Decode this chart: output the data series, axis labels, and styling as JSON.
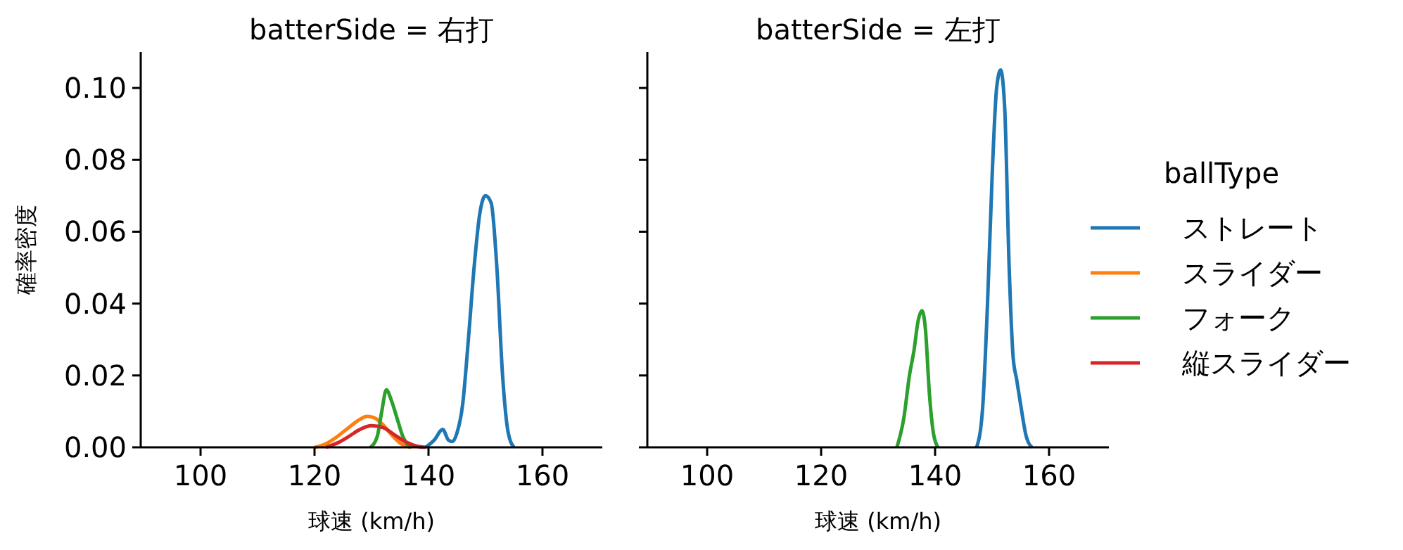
{
  "chart_data": [
    {
      "type": "line",
      "title": "batterSide = 右打",
      "xlabel": "球速 (km/h)",
      "ylabel": "確率密度",
      "xlim": [
        89.5,
        170.5
      ],
      "xticks": [
        100,
        120,
        140,
        160
      ],
      "ylim": [
        0,
        0.11
      ],
      "yticks": [
        {
          "value": 0,
          "label": "0.00"
        },
        {
          "value": 0.02,
          "label": "0.02"
        },
        {
          "value": 0.04,
          "label": "0.04"
        },
        {
          "value": 0.06,
          "label": "0.06"
        },
        {
          "value": 0.08,
          "label": "0.08"
        },
        {
          "value": 0.1,
          "label": "0.10"
        }
      ],
      "legend_title": "ballType",
      "legend": "right",
      "grid": false,
      "series": [
        {
          "name": "ストレート",
          "color": "#1f77b4",
          "x": [
            139.5,
            141,
            142.5,
            143.5,
            144.2,
            145,
            146,
            147,
            148,
            149,
            150,
            151,
            152,
            153,
            154,
            155
          ],
          "values": [
            0,
            0.002,
            0.005,
            0.002,
            0.0016,
            0.004,
            0.012,
            0.03,
            0.05,
            0.065,
            0.07,
            0.068,
            0.05,
            0.02,
            0.004,
            0
          ]
        },
        {
          "name": "スライダー",
          "color": "#ff7f0e",
          "x": [
            120,
            122,
            124,
            126,
            128,
            129.2,
            130.5,
            132,
            133.5,
            135,
            137
          ],
          "values": [
            0,
            0.001,
            0.003,
            0.0055,
            0.0078,
            0.0086,
            0.0082,
            0.0063,
            0.0035,
            0.0012,
            0
          ]
        },
        {
          "name": "フォーク",
          "color": "#2ca02c",
          "x": [
            129.8,
            131,
            131.8,
            132.6,
            133.5,
            134.5,
            135.5,
            136.7
          ],
          "values": [
            0,
            0.003,
            0.01,
            0.016,
            0.013,
            0.008,
            0.003,
            0
          ]
        },
        {
          "name": "縦スライダー",
          "color": "#d62728",
          "x": [
            122,
            124,
            126,
            128,
            130,
            132,
            134,
            136,
            138,
            139.5
          ],
          "values": [
            0,
            0.0012,
            0.003,
            0.005,
            0.006,
            0.0055,
            0.0035,
            0.0015,
            0.0003,
            0
          ]
        }
      ]
    },
    {
      "type": "line",
      "title": "batterSide = 左打",
      "xlabel": "球速 (km/h)",
      "xlim": [
        89.5,
        170.5
      ],
      "xticks": [
        100,
        120,
        140,
        160
      ],
      "ylim": [
        0,
        0.11
      ],
      "yticks": [
        {
          "value": 0,
          "label": null
        },
        {
          "value": 0.02,
          "label": null
        },
        {
          "value": 0.04,
          "label": null
        },
        {
          "value": 0.06,
          "label": null
        },
        {
          "value": 0.08,
          "label": null
        },
        {
          "value": 0.1,
          "label": null
        }
      ],
      "tick_labels": "x",
      "grid": false,
      "series": [
        {
          "color": "#1f77b4",
          "x": [
            147.3,
            148.3,
            149.2,
            150,
            150.8,
            151.5,
            152.2,
            153,
            153.7,
            154.3,
            155,
            156,
            157
          ],
          "values": [
            0,
            0.01,
            0.04,
            0.075,
            0.1,
            0.105,
            0.095,
            0.05,
            0.025,
            0.019,
            0.012,
            0.003,
            0
          ]
        },
        {
          "color": "#2ca02c",
          "x": [
            133.3,
            134.5,
            135.5,
            136.3,
            137,
            137.7,
            138.3,
            139,
            139.7,
            140.5
          ],
          "values": [
            0,
            0.008,
            0.02,
            0.027,
            0.035,
            0.038,
            0.033,
            0.015,
            0.004,
            0
          ]
        }
      ]
    }
  ]
}
